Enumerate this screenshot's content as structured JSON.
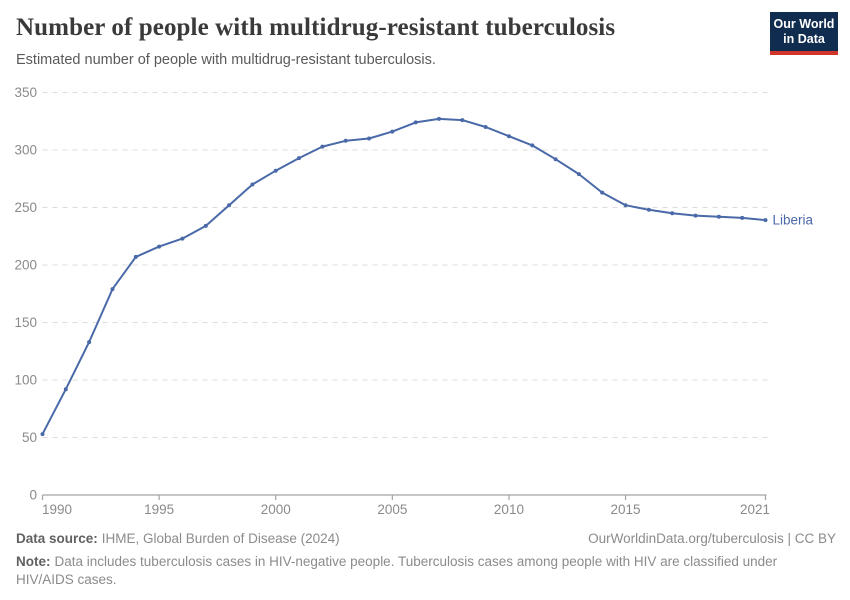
{
  "header": {
    "title": "Number of people with multidrug-resistant tuberculosis",
    "subtitle": "Estimated number of people with multidrug-resistant tuberculosis.",
    "logo": {
      "line1": "Our World",
      "line2": "in Data",
      "bg_color": "#102d50",
      "bar_color": "#d1352c"
    }
  },
  "chart_data": {
    "type": "line",
    "title": "Number of people with multidrug-resistant tuberculosis",
    "xlabel": "",
    "ylabel": "",
    "x": [
      1990,
      1991,
      1992,
      1993,
      1994,
      1995,
      1996,
      1997,
      1998,
      1999,
      2000,
      2001,
      2002,
      2003,
      2004,
      2005,
      2006,
      2007,
      2008,
      2009,
      2010,
      2011,
      2012,
      2013,
      2014,
      2015,
      2016,
      2017,
      2018,
      2019,
      2020,
      2021
    ],
    "series": [
      {
        "name": "Liberia",
        "color": "#4a69a8",
        "values": [
          53,
          92,
          133,
          179,
          207,
          216,
          223,
          234,
          252,
          270,
          282,
          293,
          303,
          308,
          310,
          316,
          324,
          327,
          326,
          320,
          312,
          304,
          292,
          279,
          263,
          252,
          248,
          245,
          243,
          242,
          241,
          239
        ]
      }
    ],
    "ylim": [
      0,
      350
    ],
    "yticks": [
      0,
      50,
      100,
      150,
      200,
      250,
      300,
      350
    ],
    "xticks": [
      1990,
      1995,
      2000,
      2005,
      2010,
      2015,
      2021
    ],
    "grid": "horizontal-dashed",
    "legend_position": "end-of-line-label",
    "marker": "circle"
  },
  "footer": {
    "source_label": "Data source:",
    "source_text": "IHME, Global Burden of Disease (2024)",
    "link_text": "OurWorldinData.org/tuberculosis | CC BY",
    "note_label": "Note:",
    "note_text": "Data includes tuberculosis cases in HIV-negative people. Tuberculosis cases among people with HIV are classified under HIV/AIDS cases."
  },
  "colors": {
    "line": "#4a69a8",
    "gridline": "#dcdcdc",
    "axis": "#a3a3a3",
    "tick_label": "#8a8a8a",
    "entity_label": "#4a69a8"
  }
}
